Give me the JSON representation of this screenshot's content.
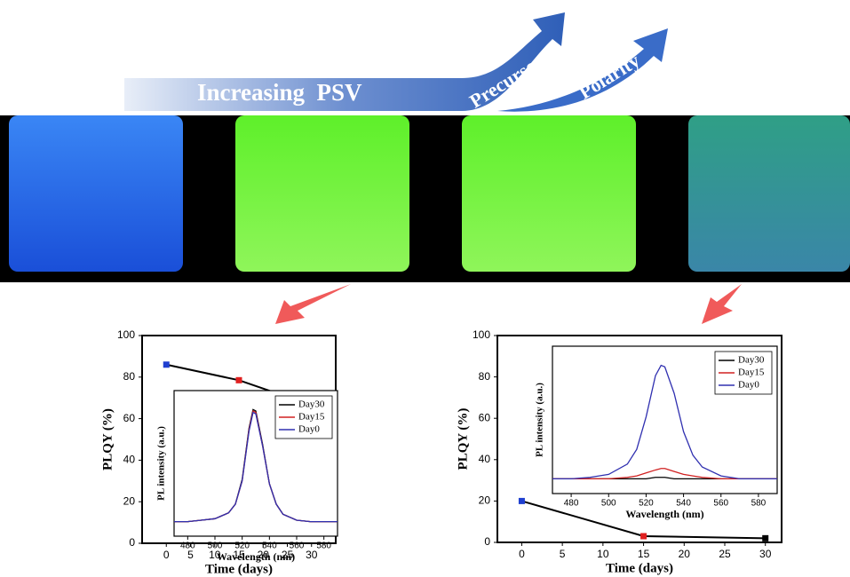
{
  "banner": {
    "label": "Increasing  PSV",
    "arrows": [
      "Precursor",
      "Polarity"
    ]
  },
  "chart_data": [
    {
      "type": "line",
      "x": [
        0,
        15,
        30
      ],
      "series": [
        {
          "color": "#000000",
          "values": [
            86,
            78.5,
            66.5
          ],
          "point_colors": [
            "#1f3fd0",
            "#e02020",
            "#000000"
          ]
        }
      ],
      "xlabel": "Time (days)",
      "ylabel": "PLQY (%)",
      "xlim": [
        -5,
        35
      ],
      "ylim": [
        0,
        100
      ],
      "xticks": [
        0,
        5,
        10,
        15,
        20,
        25,
        30
      ],
      "yticks": [
        0,
        20,
        40,
        60,
        80,
        100
      ]
    },
    {
      "type": "line",
      "x": [
        470,
        480,
        490,
        500,
        510,
        515,
        520,
        525,
        528,
        530,
        535,
        540,
        545,
        550,
        560,
        570,
        580,
        590
      ],
      "series": [
        {
          "name": "Day30",
          "color": "#000000",
          "values": [
            0.1,
            0.1,
            0.11,
            0.12,
            0.16,
            0.22,
            0.39,
            0.74,
            0.87,
            0.86,
            0.63,
            0.36,
            0.22,
            0.15,
            0.11,
            0.1,
            0.1,
            0.1
          ]
        },
        {
          "name": "Day15",
          "color": "#d02020",
          "values": [
            0.1,
            0.1,
            0.11,
            0.12,
            0.16,
            0.22,
            0.38,
            0.73,
            0.86,
            0.85,
            0.62,
            0.36,
            0.22,
            0.15,
            0.11,
            0.1,
            0.1,
            0.1
          ]
        },
        {
          "name": "Day0",
          "color": "#3030b0",
          "values": [
            0.1,
            0.1,
            0.11,
            0.12,
            0.16,
            0.22,
            0.38,
            0.72,
            0.85,
            0.84,
            0.62,
            0.36,
            0.22,
            0.15,
            0.11,
            0.1,
            0.1,
            0.1
          ]
        }
      ],
      "xlabel": "Wavelength (nm)",
      "ylabel": "PL intensity (a.u.)",
      "xlim": [
        470,
        590
      ],
      "ylim": [
        0,
        1
      ],
      "xticks": [
        480,
        500,
        520,
        540,
        560,
        580
      ],
      "legend": "upper right"
    },
    {
      "type": "line",
      "x": [
        0,
        15,
        30
      ],
      "series": [
        {
          "color": "#000000",
          "values": [
            20,
            3,
            2
          ],
          "point_colors": [
            "#1f3fd0",
            "#e02020",
            "#000000"
          ]
        }
      ],
      "xlabel": "Time (days)",
      "ylabel": "PLQY (%)",
      "xlim": [
        -3,
        32
      ],
      "ylim": [
        0,
        100
      ],
      "xticks": [
        0,
        5,
        10,
        15,
        20,
        25,
        30
      ],
      "yticks": [
        0,
        20,
        40,
        60,
        80,
        100
      ]
    },
    {
      "type": "line",
      "x": [
        470,
        480,
        490,
        500,
        510,
        515,
        520,
        525,
        528,
        530,
        535,
        540,
        545,
        550,
        560,
        570,
        580,
        590
      ],
      "series": [
        {
          "name": "Day30",
          "color": "#000000",
          "values": [
            0.1,
            0.1,
            0.1,
            0.1,
            0.1,
            0.1,
            0.1,
            0.11,
            0.11,
            0.11,
            0.1,
            0.1,
            0.1,
            0.1,
            0.1,
            0.1,
            0.1,
            0.1
          ]
        },
        {
          "name": "Day15",
          "color": "#d02020",
          "values": [
            0.1,
            0.1,
            0.1,
            0.1,
            0.11,
            0.12,
            0.14,
            0.16,
            0.17,
            0.17,
            0.15,
            0.13,
            0.12,
            0.11,
            0.1,
            0.1,
            0.1,
            0.1
          ]
        },
        {
          "name": "Day0",
          "color": "#3030b0",
          "values": [
            0.1,
            0.1,
            0.11,
            0.13,
            0.2,
            0.3,
            0.52,
            0.8,
            0.87,
            0.86,
            0.68,
            0.42,
            0.26,
            0.18,
            0.12,
            0.1,
            0.1,
            0.1
          ]
        }
      ],
      "xlabel": "Wavelength (nm)",
      "ylabel": "PL intensity (a.u.)",
      "xlim": [
        470,
        590
      ],
      "ylim": [
        0,
        1
      ],
      "xticks": [
        480,
        500,
        520,
        540,
        560,
        580
      ],
      "legend": "upper right"
    }
  ]
}
